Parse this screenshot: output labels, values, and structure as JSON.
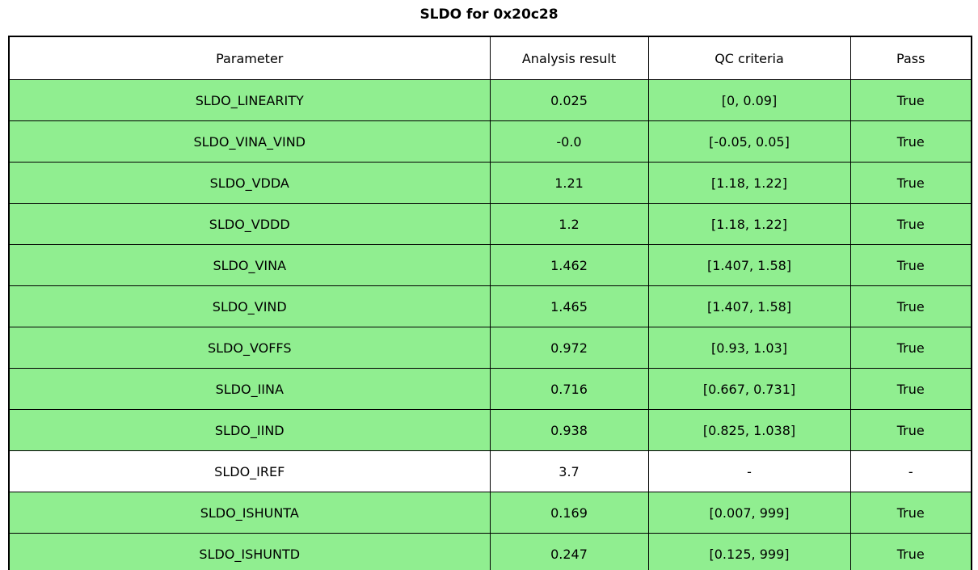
{
  "title": "SLDO for 0x20c28",
  "colors": {
    "pass_row_background": "#90ee90",
    "neutral_row_background": "#ffffff",
    "border": "#000000",
    "text": "#000000"
  },
  "chart_data": {
    "type": "table",
    "title": "SLDO for 0x20c28",
    "columns": [
      "Parameter",
      "Analysis result",
      "QC criteria",
      "Pass"
    ],
    "rows": [
      {
        "parameter": "SLDO_LINEARITY",
        "result": "0.025",
        "criteria": "[0, 0.09]",
        "pass": "True",
        "state": "pass"
      },
      {
        "parameter": "SLDO_VINA_VIND",
        "result": "-0.0",
        "criteria": "[-0.05, 0.05]",
        "pass": "True",
        "state": "pass"
      },
      {
        "parameter": "SLDO_VDDA",
        "result": "1.21",
        "criteria": "[1.18, 1.22]",
        "pass": "True",
        "state": "pass"
      },
      {
        "parameter": "SLDO_VDDD",
        "result": "1.2",
        "criteria": "[1.18, 1.22]",
        "pass": "True",
        "state": "pass"
      },
      {
        "parameter": "SLDO_VINA",
        "result": "1.462",
        "criteria": "[1.407, 1.58]",
        "pass": "True",
        "state": "pass"
      },
      {
        "parameter": "SLDO_VIND",
        "result": "1.465",
        "criteria": "[1.407, 1.58]",
        "pass": "True",
        "state": "pass"
      },
      {
        "parameter": "SLDO_VOFFS",
        "result": "0.972",
        "criteria": "[0.93, 1.03]",
        "pass": "True",
        "state": "pass"
      },
      {
        "parameter": "SLDO_IINA",
        "result": "0.716",
        "criteria": "[0.667, 0.731]",
        "pass": "True",
        "state": "pass"
      },
      {
        "parameter": "SLDO_IIND",
        "result": "0.938",
        "criteria": "[0.825, 1.038]",
        "pass": "True",
        "state": "pass"
      },
      {
        "parameter": "SLDO_IREF",
        "result": "3.7",
        "criteria": "-",
        "pass": "-",
        "state": "neutral"
      },
      {
        "parameter": "SLDO_ISHUNTA",
        "result": "0.169",
        "criteria": "[0.007, 999]",
        "pass": "True",
        "state": "pass"
      },
      {
        "parameter": "SLDO_ISHUNTD",
        "result": "0.247",
        "criteria": "[0.125, 999]",
        "pass": "True",
        "state": "pass"
      }
    ]
  }
}
